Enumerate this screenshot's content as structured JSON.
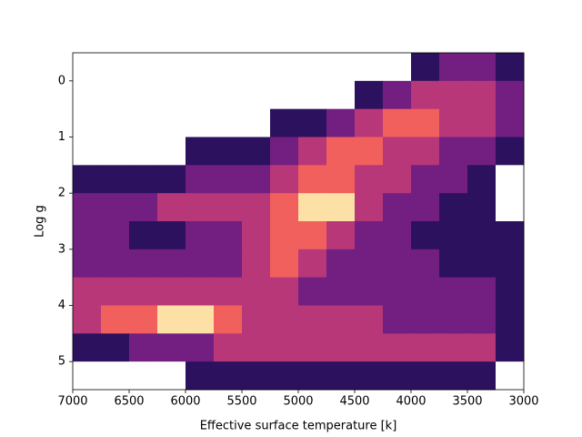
{
  "chart_data": {
    "type": "hist2d",
    "xlabel": "Effective surface temperature [k]",
    "ylabel": "Log g",
    "xlim": [
      7000,
      3000
    ],
    "ylim": [
      5.5,
      -0.5
    ],
    "xticks": [
      7000,
      6500,
      6000,
      5500,
      5000,
      4500,
      4000,
      3500,
      3000
    ],
    "yticks": [
      0,
      1,
      2,
      3,
      4,
      5
    ],
    "x_bins": [
      7000,
      6750,
      6500,
      6250,
      6000,
      5750,
      5500,
      5250,
      5000,
      4750,
      4500,
      4250,
      4000,
      3750,
      3500,
      3250,
      3000
    ],
    "y_bins": [
      -0.5,
      0,
      0.5,
      1,
      1.5,
      2,
      2.5,
      3,
      3.5,
      4,
      4.5,
      5,
      5.5
    ],
    "colors": [
      "#2c115f",
      "#721f81",
      "#b73779",
      "#f1605d",
      "#fde0a5"
    ],
    "counts": [
      [
        0,
        0,
        0,
        0,
        0,
        0,
        0,
        0,
        0,
        0,
        0,
        0,
        1,
        2,
        2,
        1
      ],
      [
        0,
        0,
        0,
        0,
        0,
        0,
        0,
        0,
        0,
        0,
        1,
        2,
        3,
        3,
        3,
        2
      ],
      [
        0,
        0,
        0,
        0,
        0,
        0,
        0,
        1,
        1,
        2,
        3,
        4,
        4,
        3,
        3,
        2
      ],
      [
        0,
        0,
        0,
        0,
        1,
        1,
        1,
        2,
        3,
        4,
        4,
        3,
        3,
        2,
        2,
        1
      ],
      [
        1,
        1,
        1,
        1,
        2,
        2,
        2,
        3,
        4,
        4,
        3,
        3,
        2,
        2,
        1,
        0
      ],
      [
        2,
        2,
        2,
        3,
        3,
        3,
        3,
        4,
        5,
        5,
        3,
        2,
        2,
        1,
        1,
        0
      ],
      [
        2,
        2,
        1,
        1,
        2,
        2,
        3,
        4,
        4,
        3,
        2,
        2,
        1,
        1,
        1,
        1
      ],
      [
        2,
        2,
        2,
        2,
        2,
        2,
        3,
        4,
        3,
        2,
        2,
        2,
        2,
        1,
        1,
        1
      ],
      [
        3,
        3,
        3,
        3,
        3,
        3,
        3,
        3,
        2,
        2,
        2,
        2,
        2,
        2,
        2,
        1
      ],
      [
        3,
        4,
        4,
        5,
        5,
        4,
        3,
        3,
        3,
        3,
        3,
        2,
        2,
        2,
        2,
        1
      ],
      [
        1,
        1,
        2,
        2,
        2,
        3,
        3,
        3,
        3,
        3,
        3,
        3,
        3,
        3,
        3,
        1
      ],
      [
        0,
        0,
        0,
        0,
        1,
        1,
        1,
        1,
        1,
        1,
        1,
        1,
        1,
        1,
        1,
        0
      ]
    ]
  }
}
